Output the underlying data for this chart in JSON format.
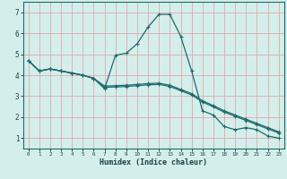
{
  "xlabel": "Humidex (Indice chaleur)",
  "bg_color": "#d4eeec",
  "grid_color": "#ddaaaa",
  "line_color": "#1a6b6b",
  "spine_color": "#1a6b6b",
  "xlim": [
    -0.5,
    23.5
  ],
  "ylim": [
    0.5,
    7.5
  ],
  "xticks": [
    0,
    1,
    2,
    3,
    4,
    5,
    6,
    7,
    8,
    9,
    10,
    11,
    12,
    13,
    14,
    15,
    16,
    17,
    18,
    19,
    20,
    21,
    22,
    23
  ],
  "yticks": [
    1,
    2,
    3,
    4,
    5,
    6,
    7
  ],
  "line1_x": [
    0,
    1,
    2,
    3,
    4,
    5,
    6,
    7,
    8,
    9,
    10,
    11,
    12,
    13,
    14,
    15,
    16,
    17,
    18,
    19,
    20,
    21,
    22,
    23
  ],
  "line1_y": [
    4.7,
    4.2,
    4.3,
    4.2,
    4.1,
    4.0,
    3.85,
    3.35,
    4.95,
    5.05,
    5.5,
    6.3,
    6.9,
    6.9,
    5.85,
    4.2,
    2.3,
    2.1,
    1.55,
    1.4,
    1.5,
    1.4,
    1.1,
    1.0
  ],
  "line2_x": [
    0,
    1,
    2,
    3,
    4,
    5,
    6,
    7,
    8,
    9,
    10,
    11,
    12,
    13,
    14,
    15,
    16,
    17,
    18,
    19,
    20,
    21,
    22,
    23
  ],
  "line2_y": [
    4.7,
    4.2,
    4.3,
    4.2,
    4.1,
    4.0,
    3.85,
    3.48,
    3.5,
    3.52,
    3.56,
    3.6,
    3.62,
    3.52,
    3.32,
    3.12,
    2.78,
    2.55,
    2.3,
    2.1,
    1.9,
    1.7,
    1.5,
    1.3
  ],
  "line3_x": [
    0,
    1,
    2,
    3,
    4,
    5,
    6,
    7,
    8,
    9,
    10,
    11,
    12,
    13,
    14,
    15,
    16,
    17,
    18,
    19,
    20,
    21,
    22,
    23
  ],
  "line3_y": [
    4.7,
    4.2,
    4.3,
    4.2,
    4.1,
    4.0,
    3.85,
    3.42,
    3.44,
    3.46,
    3.5,
    3.54,
    3.56,
    3.46,
    3.26,
    3.06,
    2.72,
    2.49,
    2.24,
    2.04,
    1.84,
    1.64,
    1.44,
    1.24
  ]
}
